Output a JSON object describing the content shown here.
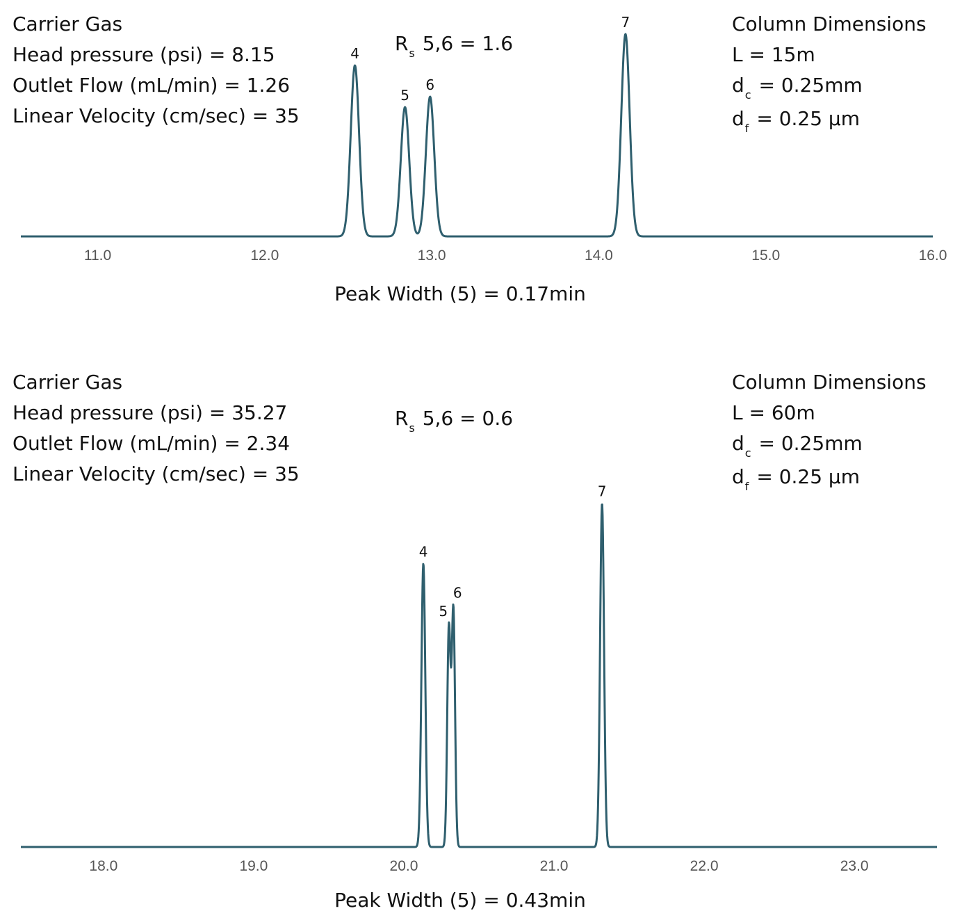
{
  "charts": [
    {
      "carrier": {
        "heading": "Carrier Gas",
        "head_pressure": "Head pressure (psi) = 8.15",
        "outlet_flow": "Outlet Flow (mL/min) = 1.26",
        "linear_velocity": "Linear Velocity (cm/sec) = 35"
      },
      "column": {
        "heading": "Column Dimensions",
        "length": "L = 15m",
        "dc_sym": "d",
        "dc_sub": "c",
        "dc_val": "= 0.25mm",
        "df_sym": "d",
        "df_sub": "f",
        "df_val": "= 0.25 μm"
      },
      "resolution": {
        "sym": "R",
        "sub": "s",
        "text": "5,6 = 1.6"
      },
      "peak_width": "Peak Width (5) = 0.17min"
    },
    {
      "carrier": {
        "heading": "Carrier Gas",
        "head_pressure": "Head pressure (psi) = 35.27",
        "outlet_flow": "Outlet Flow (mL/min) = 2.34",
        "linear_velocity": "Linear Velocity (cm/sec) = 35"
      },
      "column": {
        "heading": "Column Dimensions",
        "length": "L = 60m",
        "dc_sym": "d",
        "dc_sub": "c",
        "dc_val": "= 0.25mm",
        "df_sym": "d",
        "df_sub": "f",
        "df_val": "= 0.25 μm"
      },
      "resolution": {
        "sym": "R",
        "sub": "s",
        "text": "5,6 = 0.6"
      },
      "peak_width": "Peak Width (5) = 0.43min"
    }
  ],
  "chart_data": [
    {
      "type": "line",
      "title": "",
      "xlabel": "",
      "ylabel": "",
      "xlim": [
        10.54,
        16.0
      ],
      "ylim": [
        0,
        1
      ],
      "grid": false,
      "x_ticks": [
        "11.0",
        "12.0",
        "13.0",
        "14.0",
        "15.0",
        "16.0"
      ],
      "x_tick_values": [
        11.0,
        12.0,
        13.0,
        14.0,
        15.0,
        16.0
      ],
      "color": "#2f5f6e",
      "peaks": [
        {
          "label": "4",
          "time": 12.54,
          "height": 0.82,
          "sigma": 0.025
        },
        {
          "label": "5",
          "time": 12.84,
          "height": 0.62,
          "sigma": 0.025
        },
        {
          "label": "6",
          "time": 12.99,
          "height": 0.67,
          "sigma": 0.025
        },
        {
          "label": "7",
          "time": 14.16,
          "height": 0.97,
          "sigma": 0.025
        }
      ]
    },
    {
      "type": "line",
      "title": "",
      "xlabel": "",
      "ylabel": "",
      "xlim": [
        17.45,
        23.55
      ],
      "ylim": [
        0,
        1
      ],
      "grid": false,
      "x_ticks": [
        "18.0",
        "19.0",
        "20.0",
        "21.0",
        "22.0",
        "23.0"
      ],
      "x_tick_values": [
        18.0,
        19.0,
        20.0,
        21.0,
        22.0,
        23.0
      ],
      "color": "#2f5f6e",
      "peaks": [
        {
          "label": "4",
          "time": 20.13,
          "height": 0.61,
          "sigma": 0.013
        },
        {
          "label": "5",
          "time": 20.3,
          "height": 0.47,
          "sigma": 0.011
        },
        {
          "label": "6",
          "time": 20.33,
          "height": 0.51,
          "sigma": 0.011
        },
        {
          "label": "7",
          "time": 21.32,
          "height": 0.74,
          "sigma": 0.013
        }
      ]
    }
  ]
}
